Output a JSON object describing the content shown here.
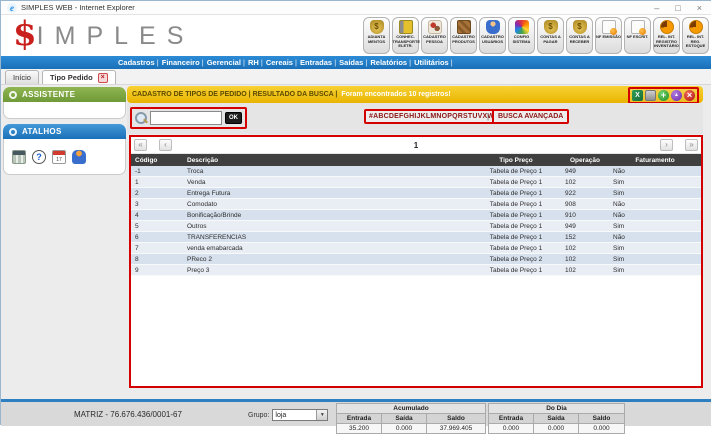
{
  "window": {
    "title": "SIMPLES WEB - Internet Explorer",
    "minimize": "–",
    "maximize": "□",
    "close": "×"
  },
  "brand": {
    "symbol": "$",
    "name": "IMPLES"
  },
  "toolbar": {
    "buttons": [
      {
        "label": "ADIANTA MENTOS",
        "icon": "money-bag-icon"
      },
      {
        "label": "CONHEC. TRANSPORTE ELETR.",
        "icon": "truck-icon"
      },
      {
        "label": "CADASTRO PESSOA",
        "icon": "people-icon"
      },
      {
        "label": "CADASTRO PRODUTOS",
        "icon": "boxes-icon"
      },
      {
        "label": "CADASTRO USUÁRIOS",
        "icon": "user-icon"
      },
      {
        "label": "CONFIG SISTEMA",
        "icon": "palette-icon"
      },
      {
        "label": "CONTAS A PAGAR",
        "icon": "money-bag-icon"
      },
      {
        "label": "CONTAS A RECEBER",
        "icon": "money-bag-icon"
      },
      {
        "label": "NF EMISSÃO",
        "icon": "document-icon"
      },
      {
        "label": "NF ESCRIT.",
        "icon": "document-icon"
      },
      {
        "label": "REL. INT. REGISTRO INVENTÁRIO",
        "icon": "pie-icon"
      },
      {
        "label": "REL. INT. REG. ESTOQUE",
        "icon": "pie-icon"
      }
    ]
  },
  "menu": {
    "items": [
      "Cadastros",
      "Financeiro",
      "Gerencial",
      "RH",
      "Cereais",
      "Entradas",
      "Saídas",
      "Relatórios",
      "Utilitários"
    ]
  },
  "tabs": [
    {
      "label": "Início"
    },
    {
      "label": "Tipo Pedido"
    }
  ],
  "sidebar": {
    "assistente_title": "ASSISTENTE",
    "atalhos_title": "ATALHOS",
    "shortcuts": [
      "calculator-icon",
      "help-icon",
      "calendar-icon",
      "person-icon"
    ]
  },
  "content": {
    "banner": {
      "title": "CADASTRO DE TIPOS DE PEDIDO | RESULTADO DA BUSCA |",
      "message": "Foram encontrados 10 registros!"
    },
    "actions": [
      "excel-icon",
      "printer-icon",
      "add-icon",
      "arrow-up-icon",
      "close-icon"
    ],
    "search": {
      "value": "",
      "ok": "OK",
      "alphabet": "#ABCDEFGHIJKLMNOPQRSTUVXWYZ",
      "separator": "|",
      "advanced": "BUSCA AVANÇADA"
    },
    "pagination": {
      "first": "«",
      "prev": "‹",
      "page": "1",
      "next": "›",
      "last": "»"
    },
    "table": {
      "columns": [
        "Código",
        "Descrição",
        "Tipo Preço",
        "Operação",
        "Faturamento"
      ],
      "rows": [
        [
          "-1",
          "Troca",
          "Tabela de Preço 1",
          "949",
          "Não"
        ],
        [
          "1",
          "Venda",
          "Tabela de Preço 1",
          "102",
          "Sim"
        ],
        [
          "2",
          "Entrega Futura",
          "Tabela de Preço 1",
          "922",
          "Sim"
        ],
        [
          "3",
          "Comodato",
          "Tabela de Preço 1",
          "908",
          "Não"
        ],
        [
          "4",
          "Bonificação/Brinde",
          "Tabela de Preço 1",
          "910",
          "Não"
        ],
        [
          "5",
          "Outros",
          "Tabela de Preço 1",
          "949",
          "Sim"
        ],
        [
          "6",
          "TRANSFERENCIAS",
          "Tabela de Preço 1",
          "152",
          "Não"
        ],
        [
          "7",
          "venda emabarcada",
          "Tabela de Preço 1",
          "102",
          "Sim"
        ],
        [
          "8",
          "PReco 2",
          "Tabela de Preço 2",
          "102",
          "Sim"
        ],
        [
          "9",
          "Preço 3",
          "Tabela de Preço 1",
          "102",
          "Sim"
        ]
      ]
    }
  },
  "statusbar": {
    "company": "MATRIZ - 76.676.436/0001-67",
    "grupo_label": "Grupo:",
    "grupo_value": "loja",
    "acumulado": {
      "title": "Acumulado",
      "headers": [
        "Entrada",
        "Saída",
        "Saldo"
      ],
      "values": [
        "35.200",
        "0.000",
        "37.969.405"
      ]
    },
    "do_dia": {
      "title": "Do Dia",
      "headers": [
        "Entrada",
        "Saída",
        "Saldo"
      ],
      "values": [
        "0.000",
        "0.000",
        "0.000"
      ]
    }
  },
  "colors": {
    "menu_blue": "#1a70b8",
    "banner_yellow": "#eebe00",
    "annotation_red": "#d40000",
    "assistente_green": "#6f9a37",
    "atalhos_blue": "#1a70b8",
    "table_header_dark": "#3f3f3f"
  }
}
